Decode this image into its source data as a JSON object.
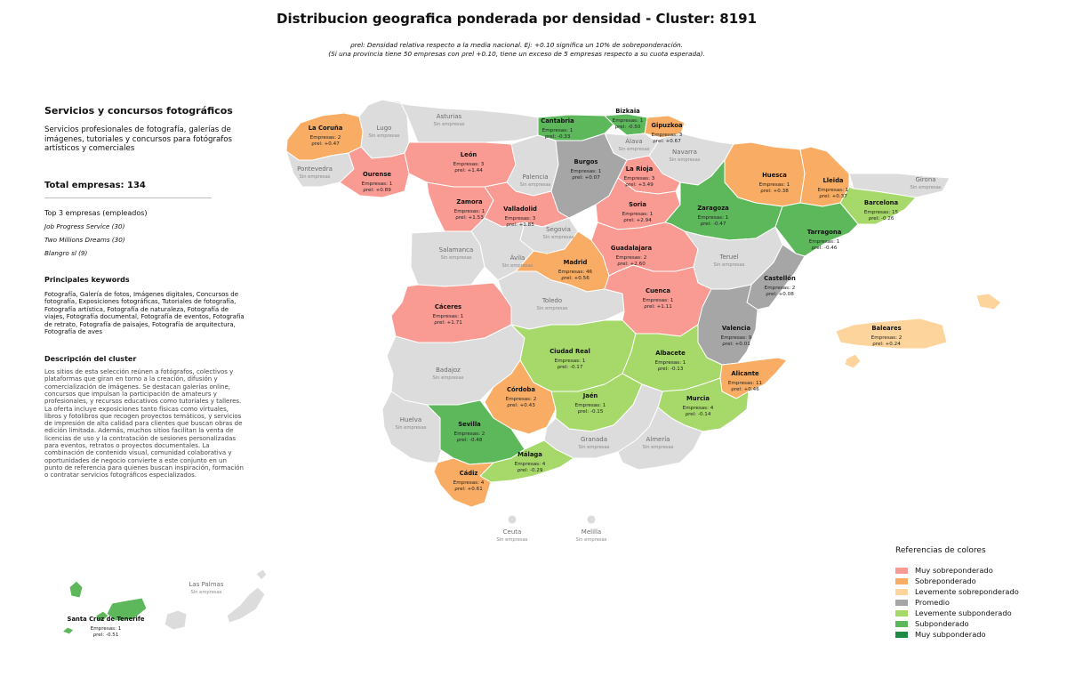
{
  "title": "Distribucion geografica ponderada por densidad - Cluster: 8191",
  "subtitle_1": "ρrel: Densidad relativa respecto a la media nacional. Ej: +0.10 significa un 10% de sobreponderación.",
  "subtitle_2": "(Si una provincia tiene 50 empresas con ρrel +0.10, tiene un exceso de 5 empresas respecto a su cuota esperada).",
  "sidebar": {
    "cluster_name": "Servicios y concursos fotográficos",
    "cluster_summary": "Servicios profesionales de fotografía, galerías de imágenes, tutoriales y concursos para fotógrafos artísticos y comerciales",
    "total_label": "Total empresas: 134",
    "top3_label": "Top 3 empresas (empleados)",
    "top_companies": [
      "Job Progress Service (30)",
      "Two Millions Dreams (30)",
      "Blangro sl (9)"
    ],
    "keywords_label": "Principales keywords",
    "keywords": "Fotografía, Galería de fotos, Imágenes digitales, Concursos de fotografía, Exposiciones fotográficas, Tutoriales de fotografía, Fotografía artística, Fotografía de naturaleza, Fotografía de viajes, Fotografía documental, Fotografía de eventos, Fotografía de retrato, Fotografía de paisajes, Fotografía de arquitectura, Fotografía de aves",
    "description_label": "Descripción del cluster",
    "description": "Los sitios de esta selección reúnen a fotógrafos, colectivos y plataformas que giran en torno a la creación, difusión y comercialización de imágenes. Se destacan galerías online, concursos que impulsan la participación de amateurs y profesionales, y recursos educativos como tutoriales y talleres. La oferta incluye exposiciones tanto físicas como virtuales, libros y fotolibros que recogen proyectos temáticos, y servicios de impresión de alta calidad para clientes que buscan obras de edición limitada. Además, muchos sitios facilitan la venta de licencias de uso y la contratación de sesiones personalizadas para eventos, retratos o proyectos documentales. La combinación de contenido visual, comunidad colaborativa y oportunidades de negocio convierte a este conjunto en un punto de referencia para quienes buscan inspiración, formación o contratar servicios fotográficos especializados."
  },
  "legend": {
    "title": "Referencias de colores",
    "items": [
      {
        "key": "muy_sobre",
        "label": "Muy sobreponderado",
        "color": "#f99a93"
      },
      {
        "key": "sobre",
        "label": "Sobreponderado",
        "color": "#f9ad64"
      },
      {
        "key": "lev_sobre",
        "label": "Levemente sobreponderado",
        "color": "#fdd59c"
      },
      {
        "key": "promedio",
        "label": "Promedio",
        "color": "#a6a6a6"
      },
      {
        "key": "lev_sub",
        "label": "Levemente subponderado",
        "color": "#a6d96a"
      },
      {
        "key": "sub",
        "label": "Subponderado",
        "color": "#5db85c"
      },
      {
        "key": "muy_sub",
        "label": "Muy subponderado",
        "color": "#1d8a45"
      }
    ]
  },
  "no_data_color": "#dcdcdc",
  "provinces": [
    {
      "name": "A Coruña",
      "display": "La Coruña",
      "cat": "sobre",
      "count": "Empresas: 2",
      "rho": "ρrel: +0.47"
    },
    {
      "name": "Lugo",
      "display": "Lugo",
      "cat": "none",
      "note": "Sin empresas"
    },
    {
      "name": "Asturias",
      "display": "Asturias",
      "cat": "none",
      "note": "Sin empresas"
    },
    {
      "name": "Cantabria",
      "display": "Cantabria",
      "cat": "sub",
      "count": "Empresas: 1",
      "rho": "ρrel: -0.33"
    },
    {
      "name": "Bizkaia",
      "display": "Bizkaia",
      "cat": "sub",
      "count": "Empresas: 1",
      "rho": "ρrel: -0.50"
    },
    {
      "name": "Gipuzkoa",
      "display": "Gipuzkoa",
      "cat": "sobre",
      "count": "Empresas: 3",
      "rho": "ρrel: +0.67"
    },
    {
      "name": "Álava",
      "display": "Álava",
      "cat": "none",
      "note": "Sin empresas"
    },
    {
      "name": "Navarra",
      "display": "Navarra",
      "cat": "none",
      "note": "Sin empresas"
    },
    {
      "name": "Pontevedra",
      "display": "Pontevedra",
      "cat": "none",
      "note": "Sin empresas"
    },
    {
      "name": "Ourense",
      "display": "Ourense",
      "cat": "muy_sobre",
      "count": "Empresas: 1",
      "rho": "ρrel: +0.89"
    },
    {
      "name": "León",
      "display": "León",
      "cat": "muy_sobre",
      "count": "Empresas: 3",
      "rho": "ρrel: +1.44"
    },
    {
      "name": "Palencia",
      "display": "Palencia",
      "cat": "none",
      "note": "Sin empresas"
    },
    {
      "name": "Burgos",
      "display": "Burgos",
      "cat": "promedio",
      "count": "Empresas: 1",
      "rho": "ρrel: +0.07"
    },
    {
      "name": "La Rioja",
      "display": "La Rioja",
      "cat": "muy_sobre",
      "count": "Empresas: 3",
      "rho": "ρrel: +3.49"
    },
    {
      "name": "Huesca",
      "display": "Huesca",
      "cat": "sobre",
      "count": "Empresas: 1",
      "rho": "ρrel: +0.38"
    },
    {
      "name": "Lleida",
      "display": "Lleida",
      "cat": "sobre",
      "count": "Empresas: 1",
      "rho": "ρrel: +0.37"
    },
    {
      "name": "Girona",
      "display": "Girona",
      "cat": "none",
      "note": "Sin empresas"
    },
    {
      "name": "Zamora",
      "display": "Zamora",
      "cat": "muy_sobre",
      "count": "Empresas: 1",
      "rho": "ρrel: +1.53"
    },
    {
      "name": "Valladolid",
      "display": "Valladolid",
      "cat": "muy_sobre",
      "count": "Empresas: 3",
      "rho": "ρrel: +1.85"
    },
    {
      "name": "Soria",
      "display": "Soria",
      "cat": "muy_sobre",
      "count": "Empresas: 1",
      "rho": "ρrel: +2.94"
    },
    {
      "name": "Zaragoza",
      "display": "Zaragoza",
      "cat": "sub",
      "count": "Empresas: 1",
      "rho": "ρrel: -0.47"
    },
    {
      "name": "Barcelona",
      "display": "Barcelona",
      "cat": "lev_sub",
      "count": "Empresas: 15",
      "rho": "ρrel: -0.26"
    },
    {
      "name": "Tarragona",
      "display": "Tarragona",
      "cat": "sub",
      "count": "Empresas: 1",
      "rho": "ρrel: -0.46"
    },
    {
      "name": "Salamanca",
      "display": "Salamanca",
      "cat": "none",
      "note": "Sin empresas"
    },
    {
      "name": "Segovia",
      "display": "Segovia",
      "cat": "none",
      "note": "Sin empresas"
    },
    {
      "name": "Ávila",
      "display": "Ávila",
      "cat": "none",
      "note": "Sin empresas"
    },
    {
      "name": "Madrid",
      "display": "Madrid",
      "cat": "sobre",
      "count": "Empresas: 46",
      "rho": "ρrel: +0.56"
    },
    {
      "name": "Guadalajara",
      "display": "Guadalajara",
      "cat": "muy_sobre",
      "count": "Empresas: 2",
      "rho": "ρrel: +2.60"
    },
    {
      "name": "Teruel",
      "display": "Teruel",
      "cat": "none",
      "note": "Sin empresas"
    },
    {
      "name": "Castellón",
      "display": "Castellón",
      "cat": "promedio",
      "count": "Empresas: 2",
      "rho": "ρrel: +0.08"
    },
    {
      "name": "Cáceres",
      "display": "Cáceres",
      "cat": "muy_sobre",
      "count": "Empresas: 1",
      "rho": "ρrel: +1.71"
    },
    {
      "name": "Toledo",
      "display": "Toledo",
      "cat": "none",
      "note": "Sin empresas"
    },
    {
      "name": "Cuenca",
      "display": "Cuenca",
      "cat": "muy_sobre",
      "count": "Empresas: 1",
      "rho": "ρrel: +1.11"
    },
    {
      "name": "Valencia",
      "display": "Valencia",
      "cat": "promedio",
      "count": "Empresas: 9",
      "rho": "ρrel: +0.01"
    },
    {
      "name": "Baleares",
      "display": "Baleares",
      "cat": "lev_sobre",
      "count": "Empresas: 2",
      "rho": "ρrel: +0.24"
    },
    {
      "name": "Badajoz",
      "display": "Badajoz",
      "cat": "none",
      "note": "Sin empresas"
    },
    {
      "name": "Ciudad Real",
      "display": "Ciudad Real",
      "cat": "lev_sub",
      "count": "Empresas: 1",
      "rho": "ρrel: -0.17"
    },
    {
      "name": "Albacete",
      "display": "Albacete",
      "cat": "lev_sub",
      "count": "Empresas: 1",
      "rho": "ρrel: -0.13"
    },
    {
      "name": "Alicante",
      "display": "Alicante",
      "cat": "sobre",
      "count": "Empresas: 11",
      "rho": "ρrel: +0.46"
    },
    {
      "name": "Córdoba",
      "display": "Córdoba",
      "cat": "sobre",
      "count": "Empresas: 2",
      "rho": "ρrel: +0.43"
    },
    {
      "name": "Jaén",
      "display": "Jaén",
      "cat": "lev_sub",
      "count": "Empresas: 1",
      "rho": "ρrel: -0.15"
    },
    {
      "name": "Murcia",
      "display": "Murcia",
      "cat": "lev_sub",
      "count": "Empresas: 4",
      "rho": "ρrel: -0.14"
    },
    {
      "name": "Huelva",
      "display": "Huelva",
      "cat": "none",
      "note": "Sin empresas"
    },
    {
      "name": "Sevilla",
      "display": "Sevilla",
      "cat": "sub",
      "count": "Empresas: 2",
      "rho": "ρrel: -0.48"
    },
    {
      "name": "Granada",
      "display": "Granada",
      "cat": "none",
      "note": "Sin empresas"
    },
    {
      "name": "Almería",
      "display": "Almería",
      "cat": "none",
      "note": "Sin empresas"
    },
    {
      "name": "Málaga",
      "display": "Málaga",
      "cat": "lev_sub",
      "count": "Empresas: 4",
      "rho": "ρrel: -0.29"
    },
    {
      "name": "Cádiz",
      "display": "Cádiz",
      "cat": "sobre",
      "count": "Empresas: 4",
      "rho": "ρrel: +0.61"
    },
    {
      "name": "Ceuta",
      "display": "Ceuta",
      "cat": "none",
      "note": "Sin empresas"
    },
    {
      "name": "Melilla",
      "display": "Melilla",
      "cat": "none",
      "note": "Sin empresas"
    },
    {
      "name": "Las Palmas",
      "display": "Las Palmas",
      "cat": "none",
      "note": "Sin empresas"
    },
    {
      "name": "Santa Cruz de Tenerife",
      "display": "Santa Cruz de Tenerife",
      "cat": "sub",
      "count": "Empresas: 1",
      "rho": "ρrel: -0.51"
    }
  ]
}
